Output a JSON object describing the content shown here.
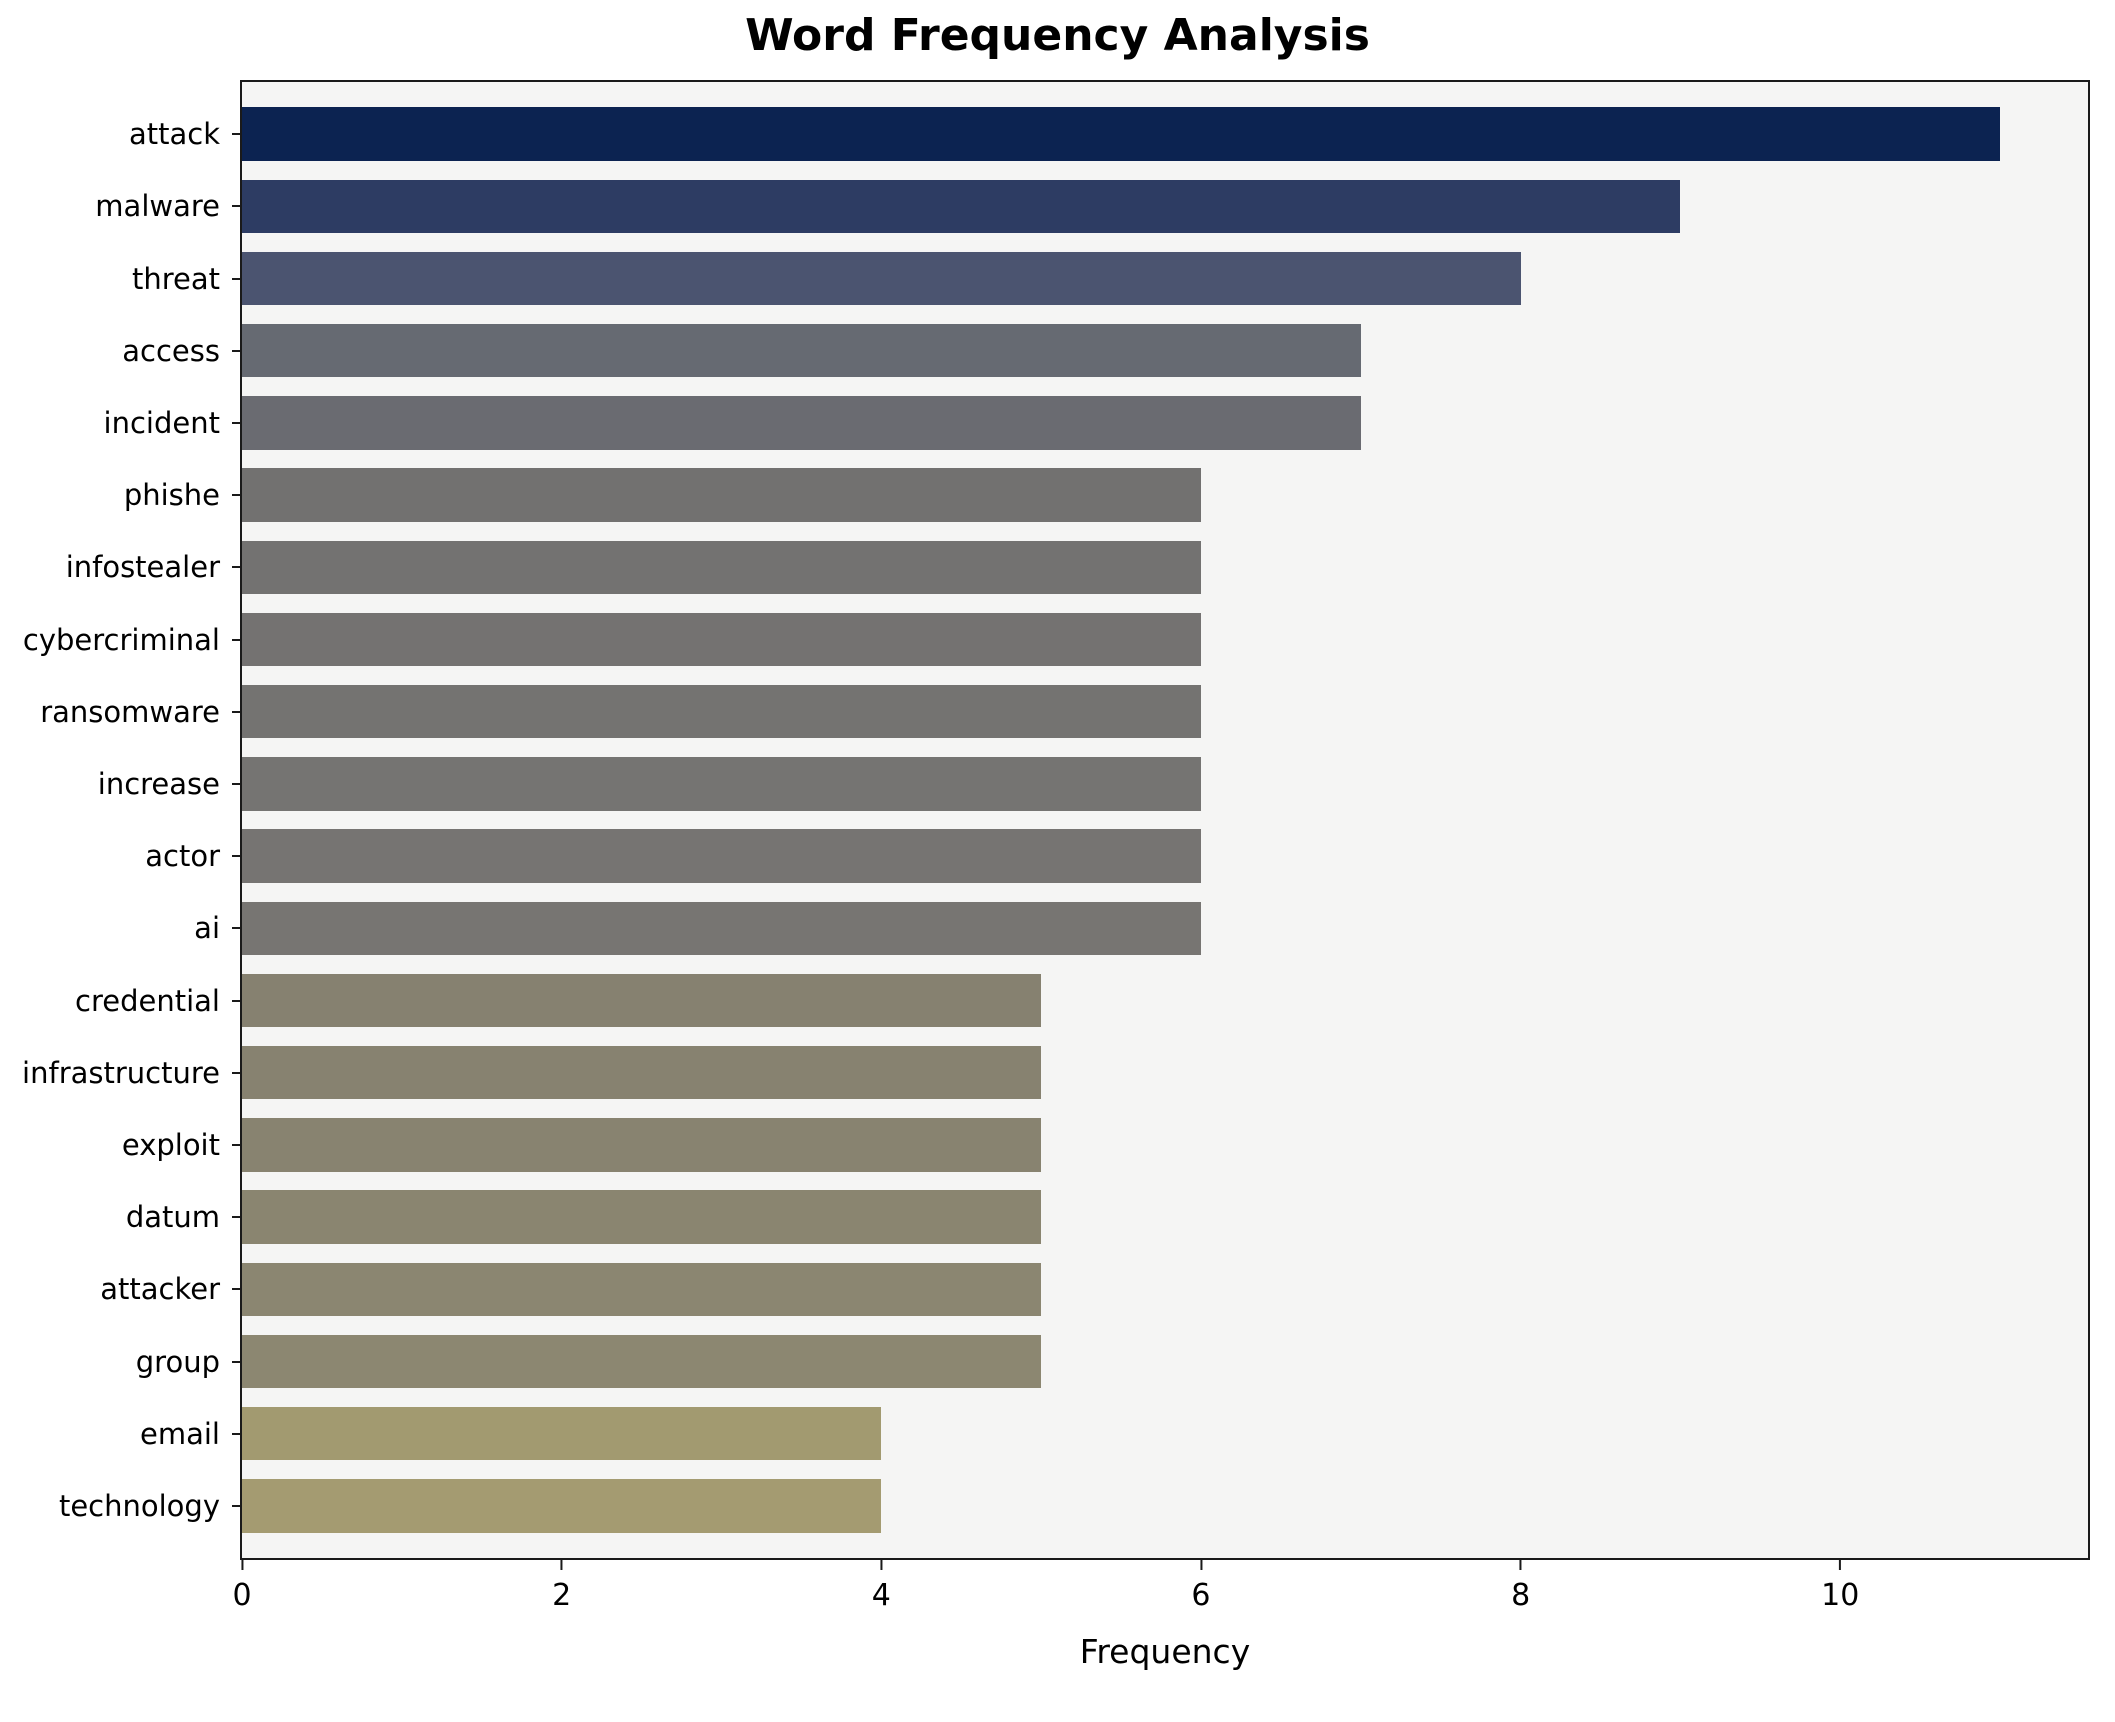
{
  "chart_data": {
    "type": "bar",
    "orientation": "horizontal",
    "title": "Word Frequency Analysis",
    "xlabel": "Frequency",
    "ylabel": "",
    "xlim": [
      0,
      11.55
    ],
    "xticks": [
      0,
      2,
      4,
      6,
      8,
      10
    ],
    "grid": false,
    "plot_background": "#f5f5f4",
    "figure_background": "#ffffff",
    "categories": [
      "attack",
      "malware",
      "threat",
      "access",
      "incident",
      "phishe",
      "infostealer",
      "cybercriminal",
      "ransomware",
      "increase",
      "actor",
      "ai",
      "credential",
      "infrastructure",
      "exploit",
      "datum",
      "attacker",
      "group",
      "email",
      "technology"
    ],
    "values": [
      11,
      9,
      8,
      7,
      7,
      6,
      6,
      6,
      6,
      6,
      6,
      6,
      5,
      5,
      5,
      5,
      5,
      5,
      4,
      4
    ],
    "colors": [
      "#0c2351",
      "#2d3c63",
      "#4b5470",
      "#666a72",
      "#6a6b71",
      "#727170",
      "#737271",
      "#747271",
      "#747371",
      "#757472",
      "#767472",
      "#777572",
      "#868170",
      "#878270",
      "#888370",
      "#8a8570",
      "#8b8671",
      "#8c8771",
      "#a29a70",
      "#a49b71"
    ]
  }
}
